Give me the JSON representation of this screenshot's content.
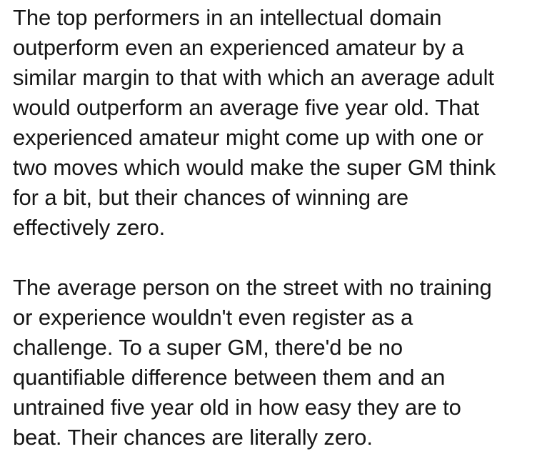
{
  "paragraphs": [
    {
      "lines": [
        "The top performers in an intellectual domain",
        "outperform even an experienced amateur by a",
        "similar margin to that with which an average adult",
        "would outperform an average five year old. That",
        "experienced amateur might come up with one or",
        "two moves which would make the super GM think",
        "for a bit, but their chances of winning are",
        "effectively zero."
      ]
    },
    {
      "lines": [
        "The average person on the street with no training",
        "or experience wouldn't even register as a",
        "challenge. To a super GM, there'd be no",
        "quantifiable difference between them and an",
        "untrained five year old in how easy they are to",
        "beat. Their chances are literally zero."
      ]
    }
  ]
}
